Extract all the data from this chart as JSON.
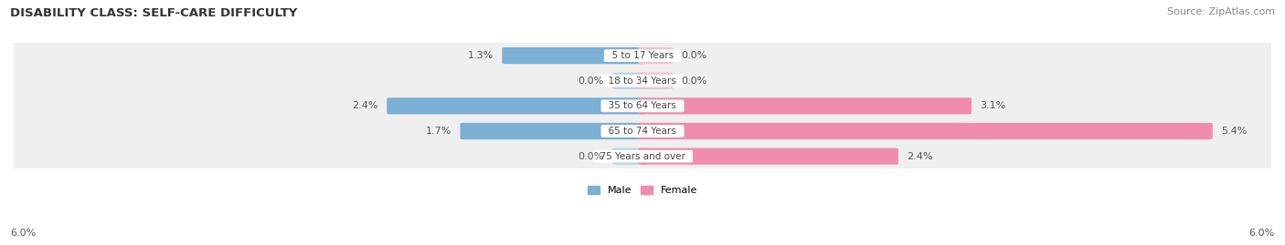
{
  "title": "DISABILITY CLASS: SELF-CARE DIFFICULTY",
  "source": "Source: ZipAtlas.com",
  "categories": [
    "5 to 17 Years",
    "18 to 34 Years",
    "35 to 64 Years",
    "65 to 74 Years",
    "75 Years and over"
  ],
  "male_values": [
    1.3,
    0.0,
    2.4,
    1.7,
    0.0
  ],
  "female_values": [
    0.0,
    0.0,
    3.1,
    5.4,
    2.4
  ],
  "male_color": "#7bafd4",
  "female_color": "#f08cad",
  "male_color_light": "#b8d4e8",
  "female_color_light": "#f5c0d0",
  "row_bg_color": "#efefef",
  "max_val": 6.0,
  "axis_label_left": "6.0%",
  "axis_label_right": "6.0%",
  "legend_male": "Male",
  "legend_female": "Female",
  "title_fontsize": 9.5,
  "source_fontsize": 8,
  "label_fontsize": 8,
  "category_fontsize": 7.5,
  "stub_size": 0.25
}
